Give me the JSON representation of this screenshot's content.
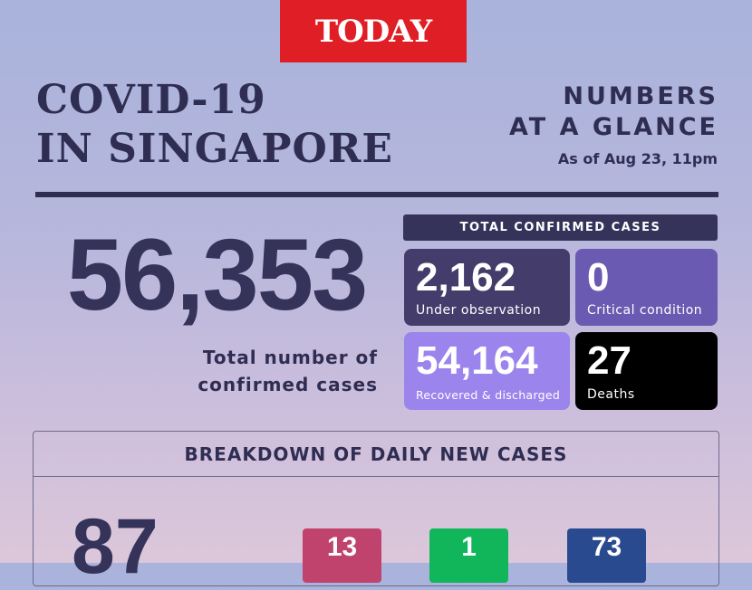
{
  "brand": {
    "logo_text": "TODAY",
    "accent": "#e01e26"
  },
  "header": {
    "title_line1": "COVID-19",
    "title_line2": "IN SINGAPORE",
    "subtitle_line1": "NUMBERS",
    "subtitle_line2": "AT A GLANCE",
    "as_of": "As of Aug 23, 11pm"
  },
  "summary": {
    "total_cases": "56,353",
    "caption_line1": "Total number of",
    "caption_line2": "confirmed cases"
  },
  "confirmed": {
    "header": "TOTAL CONFIRMED CASES",
    "boxes": [
      {
        "value": "2,162",
        "label": "Under observation",
        "color": "#443d6c"
      },
      {
        "value": "0",
        "label": "Critical condition",
        "color": "#6a5ab1"
      },
      {
        "value": "54,164",
        "label": "Recovered & discharged",
        "color": "#9b84ec"
      },
      {
        "value": "27",
        "label": "Deaths",
        "color": "#000000"
      }
    ]
  },
  "daily": {
    "header": "BREAKDOWN OF DAILY NEW CASES",
    "total": "87",
    "items": [
      {
        "value": "13",
        "color": "#c0436d"
      },
      {
        "value": "1",
        "color": "#12b65a"
      },
      {
        "value": "73",
        "color": "#2a4a8f"
      }
    ]
  }
}
